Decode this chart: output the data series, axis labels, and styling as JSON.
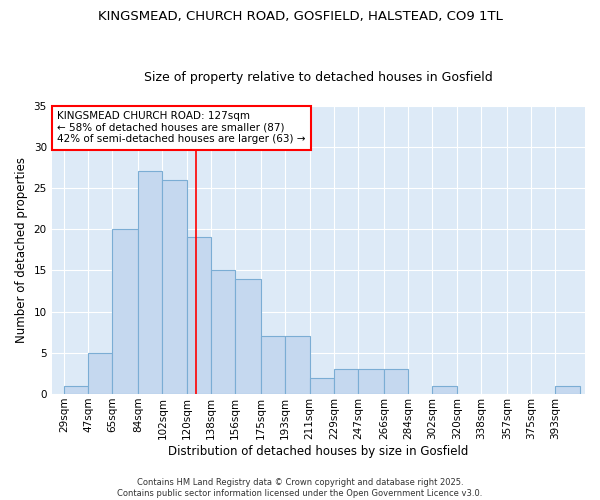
{
  "title1": "KINGSMEAD, CHURCH ROAD, GOSFIELD, HALSTEAD, CO9 1TL",
  "title2": "Size of property relative to detached houses in Gosfield",
  "xlabel": "Distribution of detached houses by size in Gosfield",
  "ylabel": "Number of detached properties",
  "annotation_title": "KINGSMEAD CHURCH ROAD: 127sqm",
  "annotation_line1": "← 58% of detached houses are smaller (87)",
  "annotation_line2": "42% of semi-detached houses are larger (63) →",
  "footer1": "Contains HM Land Registry data © Crown copyright and database right 2025.",
  "footer2": "Contains public sector information licensed under the Open Government Licence v3.0.",
  "bin_labels": [
    "29sqm",
    "47sqm",
    "65sqm",
    "84sqm",
    "102sqm",
    "120sqm",
    "138sqm",
    "156sqm",
    "175sqm",
    "193sqm",
    "211sqm",
    "229sqm",
    "247sqm",
    "266sqm",
    "284sqm",
    "302sqm",
    "320sqm",
    "338sqm",
    "357sqm",
    "375sqm",
    "393sqm"
  ],
  "bin_values": [
    1,
    5,
    20,
    27,
    26,
    19,
    15,
    14,
    7,
    7,
    2,
    3,
    3,
    3,
    0,
    1,
    0,
    0,
    0,
    0,
    1
  ],
  "left_edges": [
    29,
    47,
    65,
    84,
    102,
    120,
    138,
    156,
    175,
    193,
    211,
    229,
    247,
    266,
    284,
    302,
    320,
    338,
    357,
    375,
    393
  ],
  "bar_color": "#c5d8ef",
  "bar_edge_color": "#7badd4",
  "marker_x": 127,
  "marker_color": "red",
  "ylim": [
    0,
    35
  ],
  "xlim_left": 20,
  "xlim_right": 415,
  "yticks": [
    0,
    5,
    10,
    15,
    20,
    25,
    30,
    35
  ],
  "fig_bg_color": "#ffffff",
  "plot_bg_color": "#ddeaf7",
  "grid_color": "#ffffff",
  "title_fontsize": 9.5,
  "subtitle_fontsize": 9,
  "label_fontsize": 8.5,
  "tick_fontsize": 7.5,
  "annotation_fontsize": 7.5,
  "footer_fontsize": 6
}
